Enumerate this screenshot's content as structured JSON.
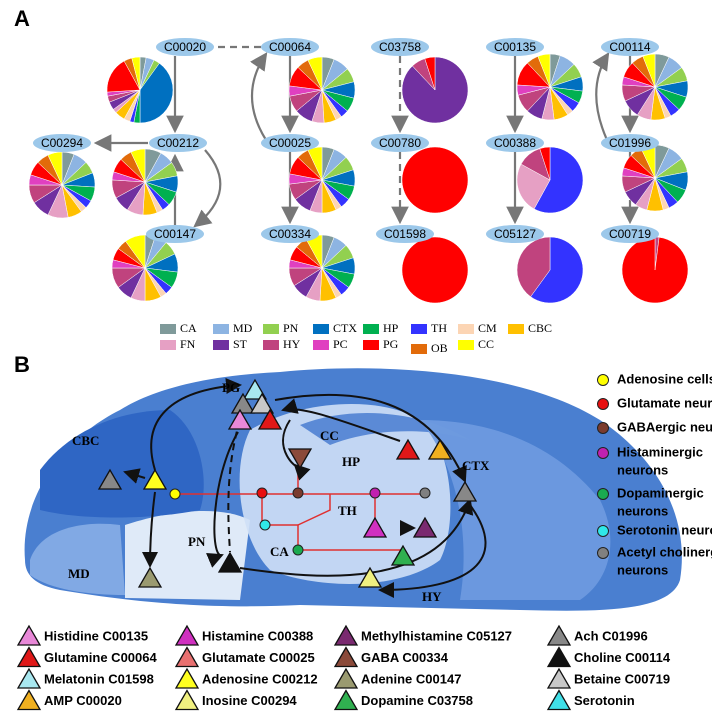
{
  "panel_a": {
    "label": "A",
    "regions": [
      {
        "name": "CA",
        "color": "#7f9a9a"
      },
      {
        "name": "MD",
        "color": "#8db4e2"
      },
      {
        "name": "PN",
        "color": "#92d050"
      },
      {
        "name": "CTX",
        "color": "#0070c0"
      },
      {
        "name": "HP",
        "color": "#00b050"
      },
      {
        "name": "TH",
        "color": "#3333ff"
      },
      {
        "name": "CM",
        "color": "#fcd5b4"
      },
      {
        "name": "CBC",
        "color": "#ffc000"
      },
      {
        "name": "FN",
        "color": "#e6a0c4"
      },
      {
        "name": "ST",
        "color": "#7030a0"
      },
      {
        "name": "HY",
        "color": "#c0437e"
      },
      {
        "name": "PC",
        "color": "#e040c0"
      },
      {
        "name": "PG",
        "color": "#ff0000"
      },
      {
        "name": "OB",
        "color": "#e26b0a"
      },
      {
        "name": "CC",
        "color": "#ffff00"
      }
    ],
    "nodes": [
      {
        "id": "C00020",
        "pie": [
          3,
          4,
          3,
          40,
          3,
          2,
          3,
          5,
          2,
          4,
          3,
          2,
          18,
          4,
          4
        ]
      },
      {
        "id": "C00064",
        "pie": [
          6,
          8,
          7,
          8,
          7,
          4,
          3,
          6,
          6,
          9,
          8,
          5,
          10,
          6,
          7
        ]
      },
      {
        "id": "C03758",
        "pie": [
          0,
          0,
          0,
          0,
          0,
          0,
          0,
          0,
          0,
          88,
          7,
          0,
          5,
          0,
          0
        ]
      },
      {
        "id": "C00135",
        "pie": [
          5,
          8,
          7,
          7,
          6,
          5,
          3,
          7,
          6,
          8,
          9,
          5,
          12,
          6,
          6
        ]
      },
      {
        "id": "C00114",
        "pie": [
          7,
          8,
          7,
          8,
          7,
          5,
          3,
          7,
          7,
          9,
          8,
          4,
          8,
          6,
          6
        ]
      },
      {
        "id": "C00294",
        "pie": [
          6,
          7,
          6,
          7,
          7,
          4,
          3,
          7,
          10,
          9,
          9,
          5,
          7,
          6,
          7
        ]
      },
      {
        "id": "C00212",
        "pie": [
          8,
          7,
          7,
          8,
          7,
          4,
          3,
          7,
          8,
          8,
          9,
          4,
          7,
          6,
          7
        ]
      },
      {
        "id": "C00025",
        "pie": [
          6,
          7,
          7,
          8,
          7,
          5,
          3,
          7,
          6,
          9,
          8,
          5,
          9,
          6,
          7
        ]
      },
      {
        "id": "C00780",
        "pie": [
          0,
          0,
          0,
          0,
          0,
          0,
          0,
          0,
          0,
          0,
          0,
          0,
          100,
          0,
          0
        ]
      },
      {
        "id": "C00388",
        "pie": [
          0,
          0,
          0,
          0,
          0,
          58,
          0,
          0,
          25,
          0,
          12,
          0,
          5,
          0,
          0
        ]
      },
      {
        "id": "C01996",
        "pie": [
          7,
          8,
          7,
          9,
          7,
          5,
          3,
          8,
          6,
          8,
          8,
          4,
          7,
          6,
          7
        ]
      },
      {
        "id": "C00147",
        "pie": [
          5,
          6,
          7,
          9,
          8,
          4,
          3,
          8,
          7,
          8,
          10,
          4,
          6,
          5,
          10
        ]
      },
      {
        "id": "C00334",
        "pie": [
          6,
          7,
          7,
          8,
          7,
          5,
          3,
          8,
          7,
          8,
          9,
          4,
          7,
          6,
          8
        ]
      },
      {
        "id": "C01598",
        "pie": [
          0,
          0,
          0,
          0,
          0,
          0,
          0,
          0,
          0,
          0,
          0,
          0,
          100,
          0,
          0
        ]
      },
      {
        "id": "C05127",
        "pie": [
          0,
          0,
          0,
          0,
          0,
          60,
          0,
          0,
          0,
          0,
          40,
          0,
          0,
          0,
          0
        ]
      },
      {
        "id": "C00719",
        "pie": [
          0,
          0,
          0,
          0,
          0,
          0,
          0,
          0,
          0,
          0,
          2,
          0,
          98,
          0,
          0
        ]
      }
    ]
  },
  "panel_b": {
    "label": "B",
    "region_labels": [
      "CBC",
      "PG",
      "CC",
      "HP",
      "TH",
      "CTX",
      "PN",
      "CA",
      "MD",
      "HY"
    ],
    "cell_types": [
      {
        "lines": [
          "Adenosine cells"
        ],
        "color": "#ffff00"
      },
      {
        "lines": [
          "Glutamate neurons"
        ],
        "color": "#e81010"
      },
      {
        "lines": [
          "GABAergic neurons"
        ],
        "color": "#7a3b2e"
      },
      {
        "lines": [
          "Histaminergic",
          "neurons"
        ],
        "color": "#c020b0"
      },
      {
        "lines": [
          "Dopaminergic",
          "neurons"
        ],
        "color": "#1aaa50"
      },
      {
        "lines": [
          "Serotonin neurons"
        ],
        "color": "#30e8e8"
      },
      {
        "lines": [
          "Acetyl cholinergic",
          "neurons"
        ],
        "color": "#808080"
      }
    ],
    "compounds": [
      {
        "name": "Histidine C00135",
        "color": "#e888d8"
      },
      {
        "name": "Histamine C00388",
        "color": "#d030c0"
      },
      {
        "name": "Methylhistamine C05127",
        "color": "#7a2a70"
      },
      {
        "name": "Ach C01996",
        "color": "#888888"
      },
      {
        "name": "Glutamine C00064",
        "color": "#e01818"
      },
      {
        "name": "Glutamate C00025",
        "color": "#e87070"
      },
      {
        "name": "GABA C00334",
        "color": "#8b4a3a"
      },
      {
        "name": "Choline C00114",
        "color": "#111111"
      },
      {
        "name": "Melatonin C01598",
        "color": "#a8e8f0"
      },
      {
        "name": "Adenosine C00212",
        "color": "#ffff20"
      },
      {
        "name": "Adenine C00147",
        "color": "#9a9a70"
      },
      {
        "name": "Betaine C00719",
        "color": "#c8c8c8"
      },
      {
        "name": "AMP C00020",
        "color": "#f0b020"
      },
      {
        "name": "Inosine C00294",
        "color": "#f0f080"
      },
      {
        "name": "Dopamine C03758",
        "color": "#30b050"
      },
      {
        "name": "Serotonin",
        "color": "#40e0e8"
      }
    ]
  }
}
